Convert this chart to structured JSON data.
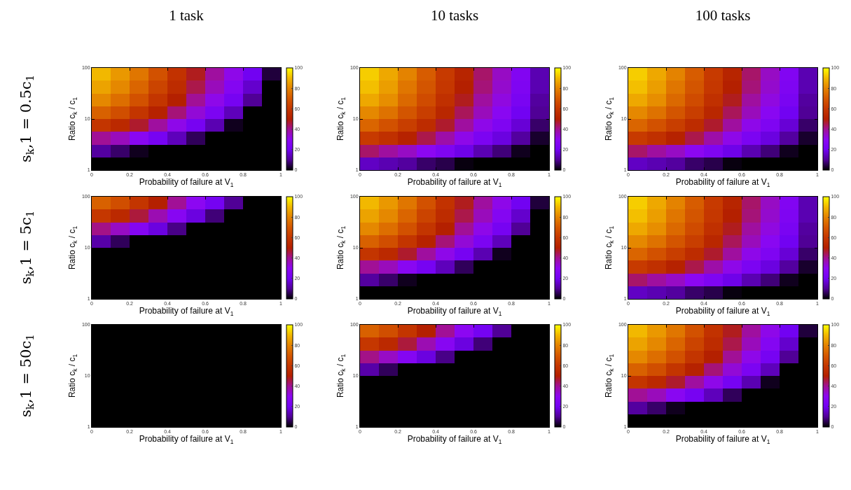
{
  "chart_data": [
    {
      "type": "heatmap",
      "title": "1 task",
      "annotations": [
        "s$_{k}$,1 = 0.5c$_{1}$"
      ],
      "xlabel": "Probability of failure at V$_{1}$",
      "ylabel": "Ratio c$_{k}$ / c$_{1}$",
      "x": [
        0.05,
        0.15,
        0.25,
        0.35,
        0.45,
        0.55,
        0.65,
        0.75,
        0.85,
        0.95
      ],
      "y": [
        75,
        42.2,
        23.7,
        13.3,
        7.5,
        4.22,
        2.37,
        1.33
      ],
      "cells": [
        [
          90,
          84,
          77,
          68,
          58,
          48,
          39,
          31,
          20,
          4
        ],
        [
          86,
          81,
          73,
          64,
          55,
          45,
          36,
          27,
          16,
          0
        ],
        [
          81,
          75,
          68,
          59,
          50,
          40,
          31,
          22,
          10,
          0
        ],
        [
          72,
          67,
          59,
          51,
          42,
          33,
          24,
          14,
          0,
          0
        ],
        [
          59,
          54,
          47,
          39,
          31,
          22,
          13,
          2,
          0,
          0
        ],
        [
          40,
          36,
          29,
          22,
          14,
          6,
          0,
          0,
          0,
          0
        ],
        [
          11,
          7,
          2,
          0,
          0,
          0,
          0,
          0,
          0,
          0
        ],
        [
          0,
          0,
          0,
          0,
          0,
          0,
          0,
          0,
          0,
          0
        ]
      ],
      "xlim": [
        0,
        1
      ],
      "ylim": [
        1,
        100
      ],
      "xticks": [
        0,
        0.2,
        0.4,
        0.6,
        0.8,
        1
      ],
      "yticks": [
        1,
        10,
        100
      ],
      "log": "y",
      "clim": [
        0,
        100
      ],
      "cticks": [
        0,
        20,
        40,
        60,
        80,
        100
      ]
    },
    {
      "type": "heatmap",
      "title": "10 tasks",
      "xlabel": "Probability of failure at V$_{1}$",
      "ylabel": "Ratio c$_{k}$ / c$_{1}$",
      "x": [
        0.05,
        0.15,
        0.25,
        0.35,
        0.45,
        0.55,
        0.65,
        0.75,
        0.85,
        0.95
      ],
      "y": [
        75,
        42.2,
        23.7,
        13.3,
        7.5,
        4.22,
        2.37,
        1.33
      ],
      "cells": [
        [
          93,
          87,
          80,
          71,
          61,
          52,
          43,
          35,
          26,
          13
        ],
        [
          91,
          85,
          77,
          69,
          60,
          50,
          42,
          34,
          25,
          13
        ],
        [
          87,
          82,
          74,
          66,
          57,
          48,
          39,
          32,
          23,
          11
        ],
        [
          81,
          76,
          69,
          62,
          53,
          44,
          36,
          29,
          20,
          10
        ],
        [
          73,
          68,
          62,
          55,
          47,
          39,
          31,
          25,
          17,
          7
        ],
        [
          61,
          57,
          51,
          45,
          38,
          31,
          24,
          18,
          11,
          3
        ],
        [
          43,
          39,
          35,
          30,
          25,
          19,
          13,
          8,
          2,
          0
        ],
        [
          15,
          13,
          11,
          7,
          5,
          1,
          0,
          0,
          0,
          0
        ]
      ],
      "xlim": [
        0,
        1
      ],
      "ylim": [
        1,
        100
      ],
      "xticks": [
        0,
        0.2,
        0.4,
        0.6,
        0.8,
        1
      ],
      "yticks": [
        1,
        10,
        100
      ],
      "log": "y",
      "clim": [
        0,
        100
      ],
      "cticks": [
        0,
        20,
        40,
        60,
        80,
        100
      ]
    },
    {
      "type": "heatmap",
      "title": "100 tasks",
      "xlabel": "Probability of failure at V$_{1}$",
      "ylabel": "Ratio c$_{k}$ / c$_{1}$",
      "x": [
        0.05,
        0.15,
        0.25,
        0.35,
        0.45,
        0.55,
        0.65,
        0.75,
        0.85,
        0.95
      ],
      "y": [
        75,
        42.2,
        23.7,
        13.3,
        7.5,
        4.22,
        2.37,
        1.33
      ],
      "cells": [
        [
          93,
          87,
          80,
          71,
          61,
          52,
          43,
          35,
          26,
          13
        ],
        [
          91,
          85,
          77,
          69,
          60,
          50,
          42,
          34,
          25,
          13
        ],
        [
          87,
          82,
          74,
          66,
          57,
          48,
          39,
          32,
          23,
          11
        ],
        [
          81,
          76,
          69,
          62,
          53,
          44,
          36,
          29,
          20,
          10
        ],
        [
          73,
          68,
          62,
          55,
          47,
          39,
          31,
          25,
          17,
          7
        ],
        [
          61,
          57,
          51,
          45,
          38,
          31,
          24,
          18,
          11,
          3
        ],
        [
          43,
          39,
          35,
          30,
          25,
          19,
          13,
          8,
          2,
          0
        ],
        [
          15,
          13,
          11,
          7,
          5,
          1,
          0,
          0,
          0,
          0
        ]
      ],
      "xlim": [
        0,
        1
      ],
      "ylim": [
        1,
        100
      ],
      "xticks": [
        0,
        0.2,
        0.4,
        0.6,
        0.8,
        1
      ],
      "yticks": [
        1,
        10,
        100
      ],
      "log": "y",
      "clim": [
        0,
        100
      ],
      "cticks": [
        0,
        20,
        40,
        60,
        80,
        100
      ]
    },
    {
      "type": "heatmap",
      "annotations": [
        "s$_{k}$,1 = 5c$_{1}$"
      ],
      "xlabel": "Probability of failure at V$_{1}$",
      "ylabel": "Ratio c$_{k}$ / c$_{1}$",
      "x": [
        0.05,
        0.15,
        0.25,
        0.35,
        0.45,
        0.55,
        0.65,
        0.75,
        0.85,
        0.95
      ],
      "y": [
        75,
        42.2,
        23.7,
        13.3,
        7.5,
        4.22,
        2.37,
        1.33
      ],
      "cells": [
        [
          72,
          67,
          59,
          50,
          40,
          30,
          21,
          10,
          0,
          0
        ],
        [
          60,
          54,
          46,
          37,
          28,
          18,
          8,
          0,
          0,
          0
        ],
        [
          41,
          35,
          27,
          18,
          9,
          0,
          0,
          0,
          0,
          0
        ],
        [
          12,
          6,
          0,
          0,
          0,
          0,
          0,
          0,
          0,
          0
        ],
        [
          0,
          0,
          0,
          0,
          0,
          0,
          0,
          0,
          0,
          0
        ],
        [
          0,
          0,
          0,
          0,
          0,
          0,
          0,
          0,
          0,
          0
        ],
        [
          0,
          0,
          0,
          0,
          0,
          0,
          0,
          0,
          0,
          0
        ],
        [
          0,
          0,
          0,
          0,
          0,
          0,
          0,
          0,
          0,
          0
        ]
      ],
      "xlim": [
        0,
        1
      ],
      "ylim": [
        1,
        100
      ],
      "xticks": [
        0,
        0.2,
        0.4,
        0.6,
        0.8,
        1
      ],
      "yticks": [
        1,
        10,
        100
      ],
      "log": "y",
      "clim": [
        0,
        100
      ],
      "cticks": [
        0,
        20,
        40,
        60,
        80,
        100
      ]
    },
    {
      "type": "heatmap",
      "xlabel": "Probability of failure at V$_{1}$",
      "ylabel": "Ratio c$_{k}$ / c$_{1}$",
      "x": [
        0.05,
        0.15,
        0.25,
        0.35,
        0.45,
        0.55,
        0.65,
        0.75,
        0.85,
        0.95
      ],
      "y": [
        75,
        42.2,
        23.7,
        13.3,
        7.5,
        4.22,
        2.37,
        1.33
      ],
      "cells": [
        [
          90,
          84,
          77,
          68,
          58,
          48,
          39,
          31,
          20,
          4
        ],
        [
          86,
          81,
          73,
          64,
          55,
          45,
          36,
          27,
          16,
          0
        ],
        [
          81,
          75,
          68,
          59,
          50,
          40,
          31,
          22,
          10,
          0
        ],
        [
          72,
          67,
          59,
          51,
          42,
          33,
          24,
          14,
          0,
          0
        ],
        [
          59,
          54,
          47,
          39,
          31,
          22,
          13,
          2,
          0,
          0
        ],
        [
          40,
          36,
          29,
          22,
          14,
          6,
          0,
          0,
          0,
          0
        ],
        [
          11,
          7,
          2,
          0,
          0,
          0,
          0,
          0,
          0,
          0
        ],
        [
          0,
          0,
          0,
          0,
          0,
          0,
          0,
          0,
          0,
          0
        ]
      ],
      "xlim": [
        0,
        1
      ],
      "ylim": [
        1,
        100
      ],
      "xticks": [
        0,
        0.2,
        0.4,
        0.6,
        0.8,
        1
      ],
      "yticks": [
        1,
        10,
        100
      ],
      "log": "y",
      "clim": [
        0,
        100
      ],
      "cticks": [
        0,
        20,
        40,
        60,
        80,
        100
      ]
    },
    {
      "type": "heatmap",
      "xlabel": "Probability of failure at V$_{1}$",
      "ylabel": "Ratio c$_{k}$ / c$_{1}$",
      "x": [
        0.05,
        0.15,
        0.25,
        0.35,
        0.45,
        0.55,
        0.65,
        0.75,
        0.85,
        0.95
      ],
      "y": [
        75,
        42.2,
        23.7,
        13.3,
        7.5,
        4.22,
        2.37,
        1.33
      ],
      "cells": [
        [
          93,
          87,
          80,
          71,
          61,
          52,
          43,
          35,
          26,
          13
        ],
        [
          91,
          85,
          77,
          69,
          60,
          50,
          42,
          34,
          25,
          13
        ],
        [
          87,
          82,
          74,
          66,
          57,
          48,
          39,
          32,
          23,
          11
        ],
        [
          81,
          76,
          69,
          62,
          53,
          44,
          36,
          29,
          20,
          10
        ],
        [
          73,
          68,
          62,
          55,
          47,
          39,
          31,
          25,
          17,
          7
        ],
        [
          61,
          57,
          51,
          45,
          38,
          31,
          24,
          18,
          11,
          3
        ],
        [
          43,
          39,
          35,
          30,
          25,
          19,
          13,
          8,
          2,
          0
        ],
        [
          15,
          13,
          11,
          7,
          5,
          1,
          0,
          0,
          0,
          0
        ]
      ],
      "xlim": [
        0,
        1
      ],
      "ylim": [
        1,
        100
      ],
      "xticks": [
        0,
        0.2,
        0.4,
        0.6,
        0.8,
        1
      ],
      "yticks": [
        1,
        10,
        100
      ],
      "log": "y",
      "clim": [
        0,
        100
      ],
      "cticks": [
        0,
        20,
        40,
        60,
        80,
        100
      ]
    },
    {
      "type": "heatmap",
      "annotations": [
        "s$_{k}$,1 = 50c$_{1}$"
      ],
      "xlabel": "Probability of failure at V$_{1}$",
      "ylabel": "Ratio c$_{k}$ / c$_{1}$",
      "x": [
        0.05,
        0.15,
        0.25,
        0.35,
        0.45,
        0.55,
        0.65,
        0.75,
        0.85,
        0.95
      ],
      "y": [
        75,
        42.2,
        23.7,
        13.3,
        7.5,
        4.22,
        2.37,
        1.33
      ],
      "cells": [
        [
          0,
          0,
          0,
          0,
          0,
          0,
          0,
          0,
          0,
          0
        ],
        [
          0,
          0,
          0,
          0,
          0,
          0,
          0,
          0,
          0,
          0
        ],
        [
          0,
          0,
          0,
          0,
          0,
          0,
          0,
          0,
          0,
          0
        ],
        [
          0,
          0,
          0,
          0,
          0,
          0,
          0,
          0,
          0,
          0
        ],
        [
          0,
          0,
          0,
          0,
          0,
          0,
          0,
          0,
          0,
          0
        ],
        [
          0,
          0,
          0,
          0,
          0,
          0,
          0,
          0,
          0,
          0
        ],
        [
          0,
          0,
          0,
          0,
          0,
          0,
          0,
          0,
          0,
          0
        ],
        [
          0,
          0,
          0,
          0,
          0,
          0,
          0,
          0,
          0,
          0
        ]
      ],
      "xlim": [
        0,
        1
      ],
      "ylim": [
        1,
        100
      ],
      "xticks": [
        0,
        0.2,
        0.4,
        0.6,
        0.8,
        1
      ],
      "yticks": [
        1,
        10,
        100
      ],
      "log": "y",
      "clim": [
        0,
        100
      ],
      "cticks": [
        0,
        20,
        40,
        60,
        80,
        100
      ]
    },
    {
      "type": "heatmap",
      "xlabel": "Probability of failure at V$_{1}$",
      "ylabel": "Ratio c$_{k}$ / c$_{1}$",
      "x": [
        0.05,
        0.15,
        0.25,
        0.35,
        0.45,
        0.55,
        0.65,
        0.75,
        0.85,
        0.95
      ],
      "y": [
        75,
        42.2,
        23.7,
        13.3,
        7.5,
        4.22,
        2.37,
        1.33
      ],
      "cells": [
        [
          72,
          67,
          59,
          50,
          40,
          30,
          21,
          10,
          0,
          0
        ],
        [
          60,
          54,
          46,
          37,
          28,
          18,
          8,
          0,
          0,
          0
        ],
        [
          41,
          35,
          27,
          18,
          9,
          0,
          0,
          0,
          0,
          0
        ],
        [
          12,
          6,
          0,
          0,
          0,
          0,
          0,
          0,
          0,
          0
        ],
        [
          0,
          0,
          0,
          0,
          0,
          0,
          0,
          0,
          0,
          0
        ],
        [
          0,
          0,
          0,
          0,
          0,
          0,
          0,
          0,
          0,
          0
        ],
        [
          0,
          0,
          0,
          0,
          0,
          0,
          0,
          0,
          0,
          0
        ],
        [
          0,
          0,
          0,
          0,
          0,
          0,
          0,
          0,
          0,
          0
        ]
      ],
      "xlim": [
        0,
        1
      ],
      "ylim": [
        1,
        100
      ],
      "xticks": [
        0,
        0.2,
        0.4,
        0.6,
        0.8,
        1
      ],
      "yticks": [
        1,
        10,
        100
      ],
      "log": "y",
      "clim": [
        0,
        100
      ],
      "cticks": [
        0,
        20,
        40,
        60,
        80,
        100
      ]
    },
    {
      "type": "heatmap",
      "xlabel": "Probability of failure at V$_{1}$",
      "ylabel": "Ratio c$_{k}$ / c$_{1}$",
      "x": [
        0.05,
        0.15,
        0.25,
        0.35,
        0.45,
        0.55,
        0.65,
        0.75,
        0.85,
        0.95
      ],
      "y": [
        75,
        42.2,
        23.7,
        13.3,
        7.5,
        4.22,
        2.37,
        1.33
      ],
      "cells": [
        [
          90,
          84,
          77,
          68,
          58,
          48,
          39,
          31,
          20,
          4
        ],
        [
          86,
          81,
          73,
          64,
          55,
          45,
          36,
          27,
          16,
          0
        ],
        [
          81,
          75,
          68,
          59,
          50,
          40,
          31,
          22,
          10,
          0
        ],
        [
          72,
          67,
          59,
          51,
          42,
          33,
          24,
          14,
          0,
          0
        ],
        [
          59,
          54,
          47,
          39,
          31,
          22,
          13,
          2,
          0,
          0
        ],
        [
          40,
          36,
          29,
          22,
          14,
          6,
          0,
          0,
          0,
          0
        ],
        [
          11,
          7,
          2,
          0,
          0,
          0,
          0,
          0,
          0,
          0
        ],
        [
          0,
          0,
          0,
          0,
          0,
          0,
          0,
          0,
          0,
          0
        ]
      ],
      "xlim": [
        0,
        1
      ],
      "ylim": [
        1,
        100
      ],
      "xticks": [
        0,
        0.2,
        0.4,
        0.6,
        0.8,
        1
      ],
      "yticks": [
        1,
        10,
        100
      ],
      "log": "y",
      "clim": [
        0,
        100
      ],
      "cticks": [
        0,
        20,
        40,
        60,
        80,
        100
      ]
    }
  ]
}
